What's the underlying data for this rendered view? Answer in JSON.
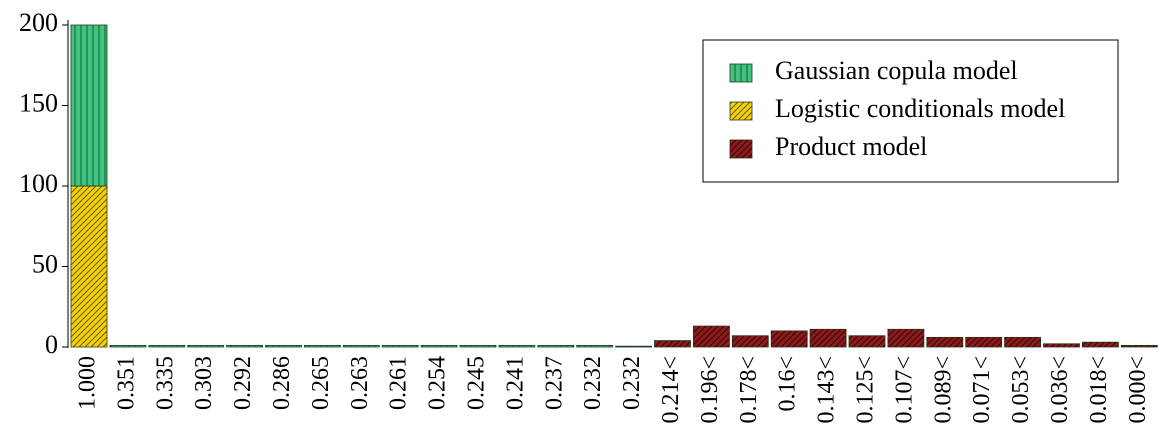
{
  "chart_data": {
    "type": "stacked_bar",
    "categories": [
      "1.000",
      "0.351",
      "0.335",
      "0.303",
      "0.292",
      "0.286",
      "0.265",
      "0.263",
      "0.261",
      "0.254",
      "0.245",
      "0.241",
      "0.237",
      "0.232",
      "0.232",
      "0.214<",
      "0.196<",
      "0.178<",
      "0.16<",
      "0.143<",
      "0.125<",
      "0.107<",
      "0.089<",
      "0.071<",
      "0.053<",
      "0.036<",
      "0.018<",
      "0.000<"
    ],
    "series": [
      {
        "name": "Gaussian copula model",
        "color": "#3fc47f",
        "values": [
          100,
          1,
          1,
          1,
          1,
          1,
          1,
          1,
          1,
          1,
          1,
          1,
          1,
          1,
          0.5,
          0,
          0,
          0,
          0,
          0,
          0,
          0,
          0,
          0,
          0,
          0,
          0,
          0
        ]
      },
      {
        "name": "Logistic conditionals model",
        "color": "#f5d10a",
        "values": [
          100,
          0,
          0,
          0,
          0,
          0,
          0,
          0,
          0,
          0,
          0,
          0,
          0,
          0,
          0,
          0,
          0,
          0,
          0,
          0,
          0,
          0,
          0,
          0,
          0,
          0,
          0,
          0
        ]
      },
      {
        "name": "Product model",
        "color": "#8b1a1a",
        "values": [
          0,
          0,
          0,
          0,
          0,
          0,
          0,
          0,
          0,
          0,
          0,
          0,
          0,
          0,
          0,
          4,
          13,
          7,
          10,
          11,
          7,
          11,
          6,
          6,
          6,
          2,
          3,
          1
        ]
      }
    ],
    "ylim": [
      0,
      200
    ],
    "yticks": [
      0,
      50,
      100,
      150,
      200
    ],
    "legend": "upper right"
  }
}
